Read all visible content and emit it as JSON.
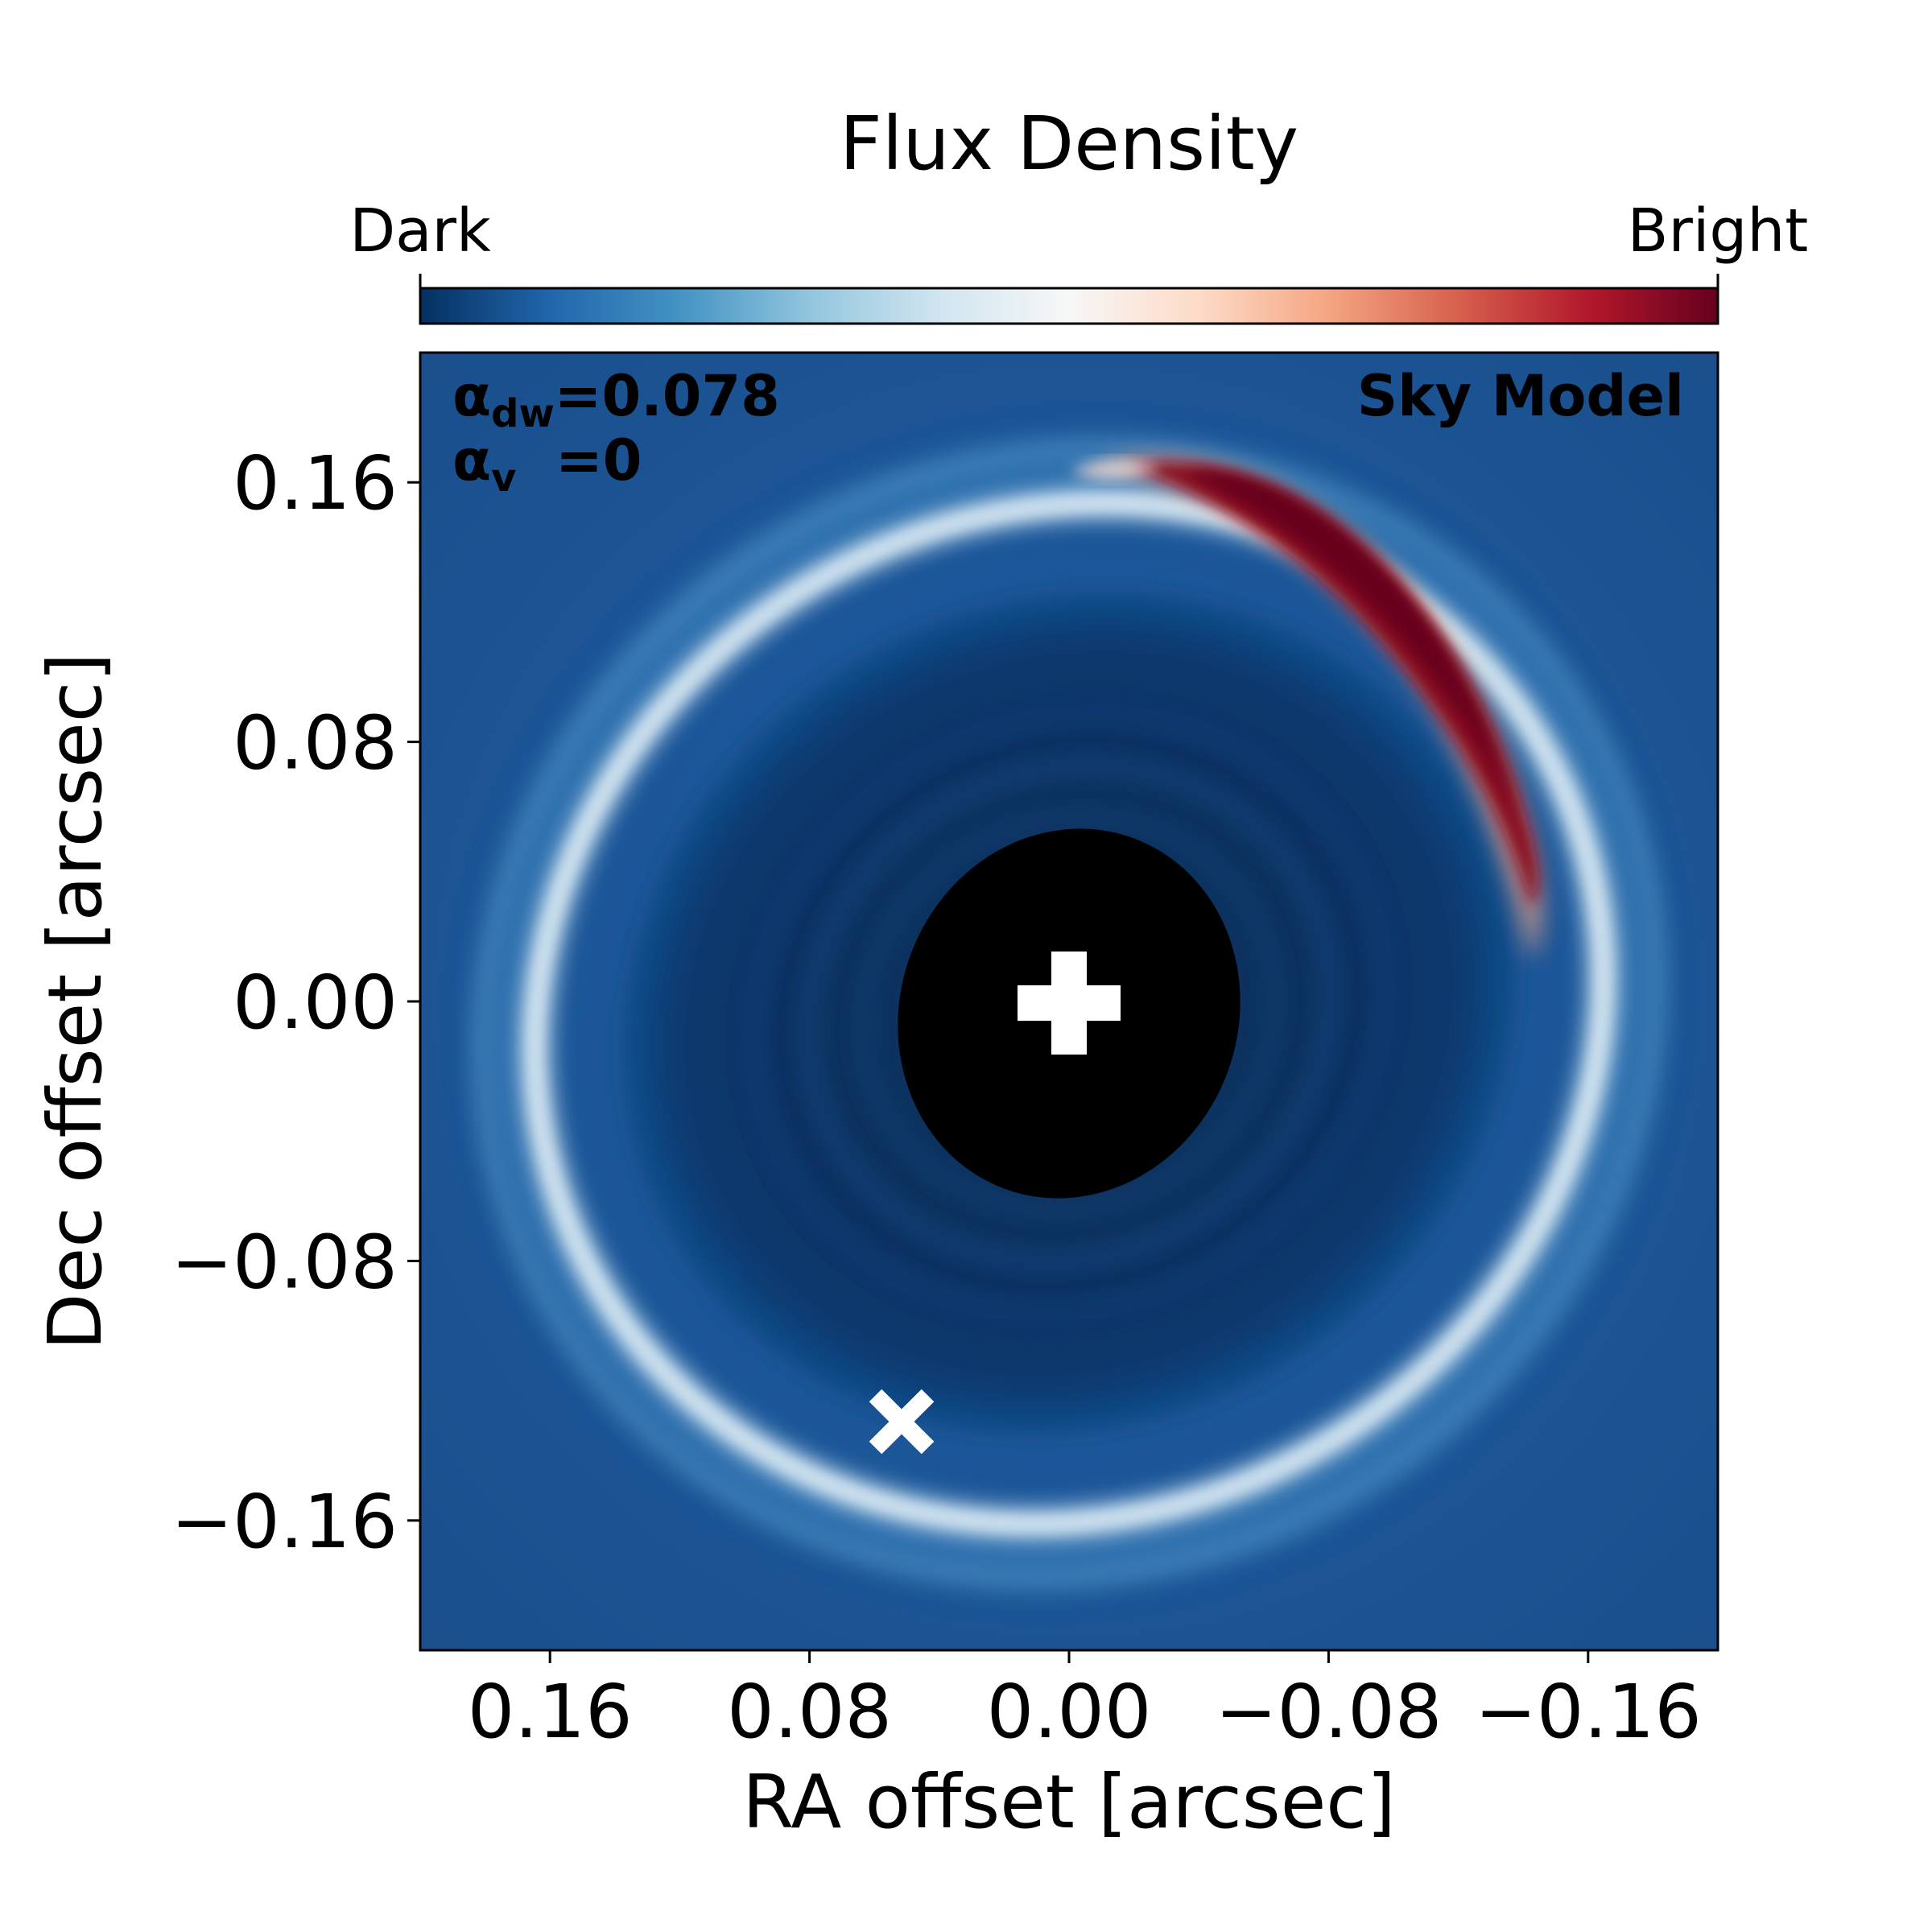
{
  "chart_data": {
    "type": "heatmap",
    "title": "",
    "xlabel": "RA offset [arcsec]",
    "ylabel": "Dec offset [arcsec]",
    "xlim": [
      0.2,
      -0.2
    ],
    "ylim": [
      -0.2,
      0.2
    ],
    "x_ticks": [
      0.16,
      0.08,
      0.0,
      -0.08,
      -0.16
    ],
    "x_tick_labels": [
      "0.16",
      "0.08",
      "0.00",
      "−0.08",
      "−0.16"
    ],
    "y_ticks": [
      0.16,
      0.08,
      0.0,
      -0.08,
      -0.16
    ],
    "y_tick_labels": [
      "0.16",
      "0.08",
      "0.00",
      "−0.08",
      "−0.16"
    ],
    "grid": false,
    "colorbar": {
      "title": "Flux Density",
      "low_label": "Dark",
      "high_label": "Bright",
      "colormap": "RdBu_r",
      "colors": [
        "#053061",
        "#2166ac",
        "#4393c3",
        "#92c5de",
        "#d1e5f0",
        "#f7f7f7",
        "#fddbc7",
        "#f4a582",
        "#d6604d",
        "#b2182b",
        "#67001f"
      ]
    },
    "panel_label": "Sky Model",
    "params": [
      {
        "symbol": "α",
        "subscript": "dw",
        "text": "=0.078"
      },
      {
        "symbol": "α",
        "subscript": "v",
        "text": "  =0"
      }
    ],
    "markers": [
      {
        "name": "star",
        "shape": "plus",
        "x": 0.0,
        "y": 0.0,
        "color": "#ffffff"
      },
      {
        "name": "planet",
        "shape": "x",
        "x": 0.05,
        "y": -0.13,
        "color": "#ffffff"
      }
    ],
    "features": {
      "outer_ring": {
        "center": [
          0.0,
          -0.01
        ],
        "semi_major": 0.175,
        "semi_minor": 0.16,
        "position_angle_deg": -28
      },
      "gap": {
        "center": [
          0.0,
          -0.01
        ],
        "semi_major": 0.145,
        "semi_minor": 0.13
      },
      "crescent": {
        "center_angle_deg": 57,
        "span_deg": 80
      },
      "inner_mask": {
        "center": [
          0.0,
          0.0
        ],
        "semi_major": 0.058,
        "semi_minor": 0.051,
        "color": "#000000"
      }
    }
  }
}
